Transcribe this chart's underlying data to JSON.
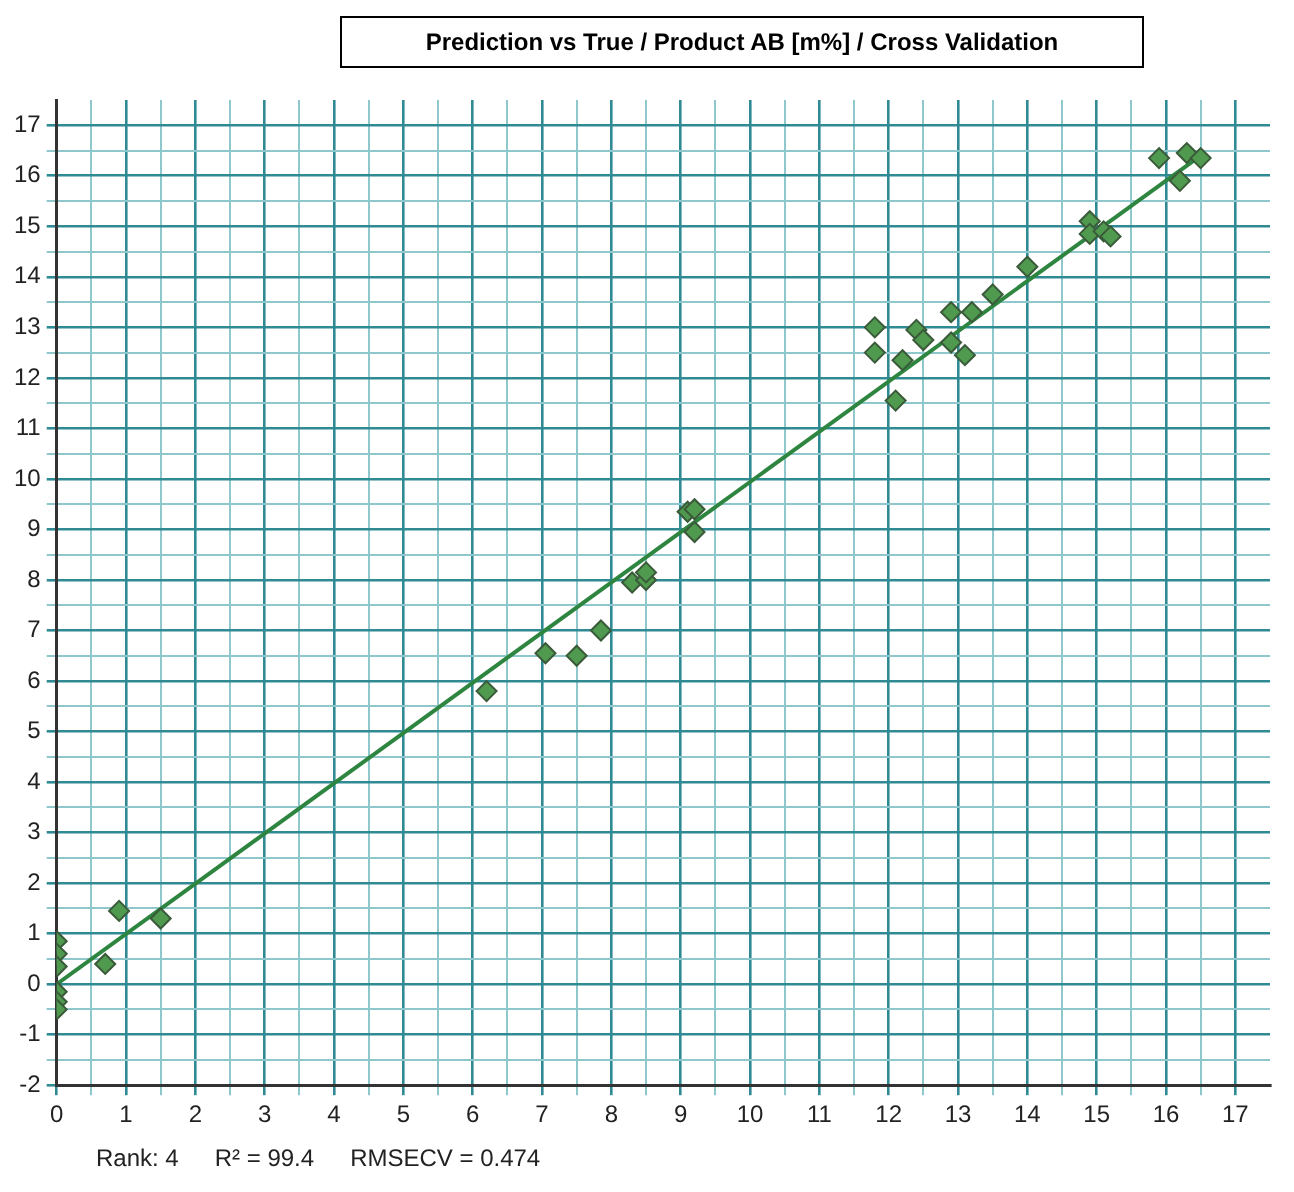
{
  "chart_data": {
    "type": "scatter",
    "title": "Prediction vs True / Product AB [m%] / Cross Validation",
    "series": [
      {
        "type": "scatter",
        "color": "#4f9a4f",
        "marker": "diamond",
        "x": [
          0,
          0,
          0,
          0,
          0,
          0,
          0.7,
          0.9,
          1.5,
          6.2,
          7.05,
          7.5,
          7.85,
          8.3,
          8.5,
          8.5,
          9.1,
          9.2,
          9.2,
          11.8,
          11.8,
          12.1,
          12.2,
          12.4,
          12.5,
          12.9,
          12.9,
          13.1,
          13.2,
          13.5,
          14.0,
          14.9,
          14.9,
          15.1,
          15.2,
          15.9,
          16.2,
          16.3,
          16.5
        ],
        "values": [
          0.85,
          0.6,
          0.35,
          -0.15,
          -0.35,
          -0.5,
          0.4,
          1.45,
          1.3,
          5.8,
          6.55,
          6.5,
          7.0,
          7.95,
          8.0,
          8.15,
          9.35,
          9.4,
          8.95,
          13.0,
          12.5,
          11.55,
          12.35,
          12.95,
          12.75,
          13.3,
          12.7,
          12.45,
          13.3,
          13.65,
          14.2,
          15.1,
          14.85,
          14.9,
          14.8,
          16.35,
          15.9,
          16.45,
          16.35
        ]
      },
      {
        "type": "line",
        "color": "#2e8540",
        "marker": "none",
        "x": [
          0,
          16.5
        ],
        "values": [
          0,
          16.4
        ]
      }
    ],
    "xlim": [
      0,
      17.5
    ],
    "ylim": [
      -2,
      17.5
    ],
    "xticks": [
      0,
      {
        "value": 0.5,
        "label": null
      },
      1,
      {
        "value": 1.5,
        "label": null
      },
      2,
      {
        "value": 2.5,
        "label": null
      },
      3,
      {
        "value": 3.5,
        "label": null
      },
      4,
      {
        "value": 4.5,
        "label": null
      },
      5,
      {
        "value": 5.5,
        "label": null
      },
      6,
      {
        "value": 6.5,
        "label": null
      },
      7,
      {
        "value": 7.5,
        "label": null
      },
      8,
      {
        "value": 8.5,
        "label": null
      },
      9,
      {
        "value": 9.5,
        "label": null
      },
      10,
      {
        "value": 10.5,
        "label": null
      },
      11,
      {
        "value": 11.5,
        "label": null
      },
      12,
      {
        "value": 12.5,
        "label": null
      },
      13,
      {
        "value": 13.5,
        "label": null
      },
      14,
      {
        "value": 14.5,
        "label": null
      },
      15,
      {
        "value": 15.5,
        "label": null
      },
      16,
      {
        "value": 16.5,
        "label": null
      },
      17
    ],
    "yticks": [
      -2,
      {
        "value": -1.5,
        "label": null
      },
      -1,
      {
        "value": -0.5,
        "label": null
      },
      0,
      {
        "value": 0.5,
        "label": null
      },
      1,
      {
        "value": 1.5,
        "label": null
      },
      2,
      {
        "value": 2.5,
        "label": null
      },
      3,
      {
        "value": 3.5,
        "label": null
      },
      4,
      {
        "value": 4.5,
        "label": null
      },
      5,
      {
        "value": 5.5,
        "label": null
      },
      6,
      {
        "value": 6.5,
        "label": null
      },
      7,
      {
        "value": 7.5,
        "label": null
      },
      8,
      {
        "value": 8.5,
        "label": null
      },
      9,
      {
        "value": 9.5,
        "label": null
      },
      10,
      {
        "value": 10.5,
        "label": null
      },
      11,
      {
        "value": 11.5,
        "label": null
      },
      12,
      {
        "value": 12.5,
        "label": null
      },
      13,
      {
        "value": 13.5,
        "label": null
      },
      14,
      {
        "value": 14.5,
        "label": null
      },
      15,
      {
        "value": 15.5,
        "label": null
      },
      16,
      {
        "value": 16.5,
        "label": null
      },
      17
    ],
    "grid": true,
    "legend": false,
    "annotations": [
      "Rank: 4",
      "R² = 99.4",
      "RMSECV = 0.474"
    ]
  }
}
